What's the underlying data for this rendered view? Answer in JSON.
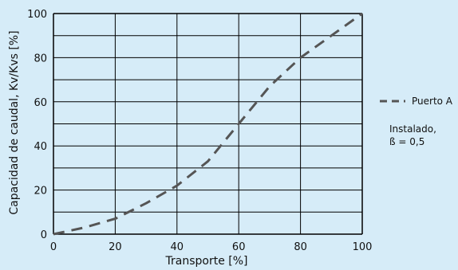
{
  "chart_data": {
    "type": "line",
    "xlabel": "Transporte [%]",
    "ylabel": "Capacidad de caudal, Kv/Kvs [%]",
    "xlim": [
      0,
      100
    ],
    "ylim": [
      0,
      100
    ],
    "x_ticks": [
      "0",
      "20",
      "40",
      "60",
      "80",
      "100"
    ],
    "y_ticks": [
      "0",
      "20",
      "40",
      "60",
      "80",
      "100"
    ],
    "grid": true,
    "legend_position": "right",
    "series": [
      {
        "name": "Puerto A",
        "x": [
          0,
          10,
          20,
          30,
          40,
          50,
          60,
          70,
          80,
          90,
          100
        ],
        "y": [
          0,
          3,
          7,
          14,
          22,
          33,
          50,
          67,
          80,
          90,
          100
        ],
        "style": "dashed",
        "color": "#555555"
      }
    ],
    "annotation": {
      "line1": "Instalado,",
      "line2": "ß = 0,5"
    }
  }
}
